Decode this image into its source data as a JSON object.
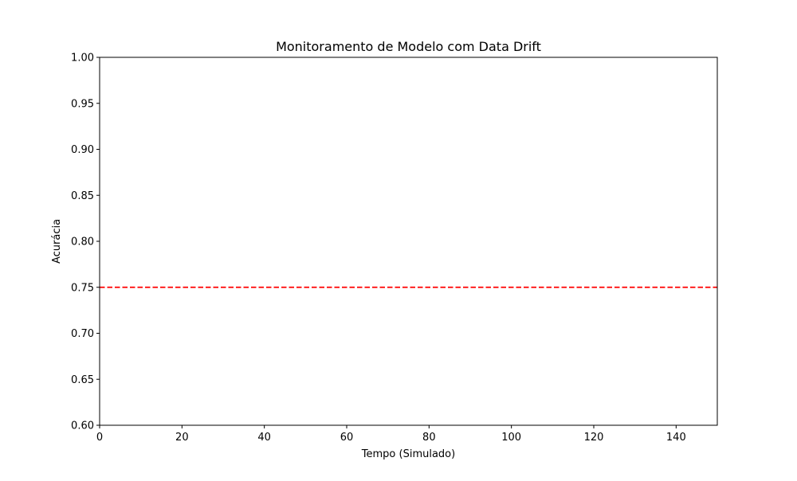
{
  "chart_data": {
    "type": "line",
    "title": "Monitoramento de Modelo com Data Drift",
    "xlabel": "Tempo (Simulado)",
    "ylabel": "Acurácia",
    "xlim": [
      0,
      150
    ],
    "ylim": [
      0.6,
      1.0
    ],
    "x_ticks": [
      0,
      20,
      40,
      60,
      80,
      100,
      120,
      140
    ],
    "y_ticks": [
      0.6,
      0.65,
      0.7,
      0.75,
      0.8,
      0.85,
      0.9,
      0.95,
      1.0
    ],
    "x_tick_labels": [
      "0",
      "20",
      "40",
      "60",
      "80",
      "100",
      "120",
      "140"
    ],
    "y_tick_labels": [
      "0.60",
      "0.65",
      "0.70",
      "0.75",
      "0.80",
      "0.85",
      "0.90",
      "0.95",
      "1.00"
    ],
    "series": [],
    "reference_lines": [
      {
        "orientation": "horizontal",
        "y": 0.75,
        "color": "#ff0000",
        "style": "dashed"
      }
    ],
    "grid": false,
    "legend": "none"
  }
}
